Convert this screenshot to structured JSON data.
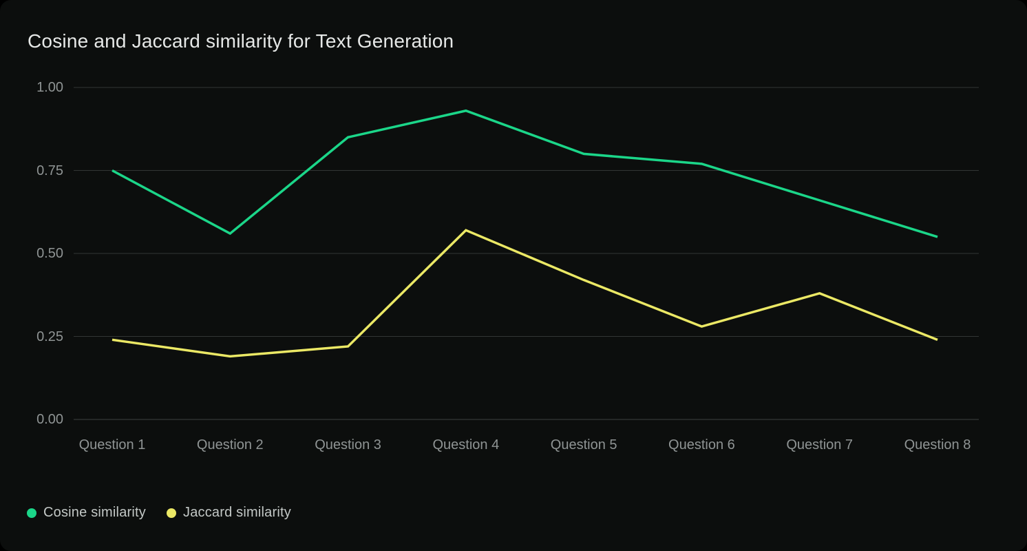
{
  "window": {
    "background": "#000000",
    "card_background": "#0c0e0d"
  },
  "chart_data": {
    "type": "line",
    "title": "Cosine and Jaccard similarity for Text Generation",
    "categories": [
      "Question 1",
      "Question 2",
      "Question 3",
      "Question 4",
      "Question 5",
      "Question 6",
      "Question 7",
      "Question 8"
    ],
    "series": [
      {
        "name": "Cosine similarity",
        "color": "#1bd689",
        "values": [
          0.75,
          0.56,
          0.85,
          0.93,
          0.8,
          0.77,
          0.66,
          0.55
        ]
      },
      {
        "name": "Jaccard similarity",
        "color": "#ebe865",
        "values": [
          0.24,
          0.19,
          0.22,
          0.57,
          0.42,
          0.28,
          0.38,
          0.24
        ]
      }
    ],
    "xlabel": "",
    "ylabel": "",
    "ylim": [
      0,
      1
    ],
    "y_ticks": [
      {
        "label": "1.00",
        "value": 1.0
      },
      {
        "label": "0.75",
        "value": 0.75
      },
      {
        "label": "0.50",
        "value": 0.5
      },
      {
        "label": "0.25",
        "value": 0.25
      },
      {
        "label": "0.00",
        "value": 0.0
      }
    ],
    "grid": "horizontal",
    "legend_position": "bottom-left"
  }
}
